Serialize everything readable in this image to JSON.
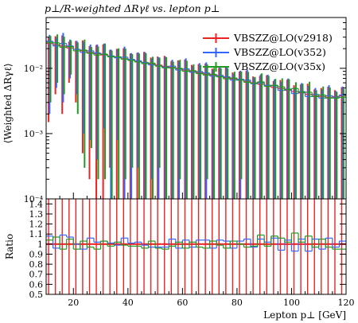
{
  "chart_data": [
    {
      "panel": "main",
      "type": "line",
      "title": "p⊥/R-weighted ΔRγℓ vs. lepton p⊥",
      "ylabel": "⟨Weighted  ΔRγℓ⟩",
      "yscale": "log",
      "ylim": [
        0.0001,
        0.06
      ],
      "xlim": [
        10,
        120
      ],
      "ytick_labels": [
        "10⁻²",
        "10⁻³",
        "10⁻⁴"
      ],
      "legend_position": "top-right",
      "colors": {
        "v2918": "#ee2222",
        "v352": "#3366ff",
        "v35x": "#229922",
        "ratio_line": "#ee2222"
      },
      "x_bin_edges": [
        10,
        12.5,
        15,
        17.5,
        20,
        22.5,
        25,
        27.5,
        30,
        32.5,
        35,
        37.5,
        40,
        42.5,
        45,
        47.5,
        50,
        52.5,
        55,
        57.5,
        60,
        62.5,
        65,
        67.5,
        70,
        72.5,
        75,
        77.5,
        80,
        82.5,
        85,
        87.5,
        90,
        92.5,
        95,
        97.5,
        100,
        102.5,
        105,
        107.5,
        110,
        112.5,
        115,
        117.5,
        120
      ],
      "series": [
        {
          "name": "VBSZZ@LO(v2918)",
          "values": [
            0.024,
            0.023,
            0.022,
            0.0205,
            0.0195,
            0.0185,
            0.0175,
            0.0168,
            0.016,
            0.0153,
            0.0147,
            0.014,
            0.0135,
            0.0128,
            0.0123,
            0.0117,
            0.0112,
            0.0107,
            0.0103,
            0.0098,
            0.0094,
            0.009,
            0.0086,
            0.0082,
            0.0079,
            0.0075,
            0.0072,
            0.0069,
            0.0066,
            0.0063,
            0.006,
            0.0057,
            0.0054,
            0.0051,
            0.0049,
            0.0046,
            0.0044,
            0.0042,
            0.004,
            0.0038,
            0.0037,
            0.0036,
            0.0037,
            0.0038
          ]
        },
        {
          "name": "VBSZZ@LO(v352)",
          "values": [
            0.026,
            0.022,
            0.024,
            0.022,
            0.0195,
            0.0175,
            0.0185,
            0.0172,
            0.0165,
            0.0155,
            0.0145,
            0.0148,
            0.0137,
            0.013,
            0.0122,
            0.0113,
            0.0109,
            0.0104,
            0.0108,
            0.0094,
            0.0098,
            0.0087,
            0.0089,
            0.0085,
            0.0076,
            0.0078,
            0.0074,
            0.0066,
            0.0068,
            0.0066,
            0.0058,
            0.006,
            0.0055,
            0.0054,
            0.0046,
            0.0048,
            0.0041,
            0.0044,
            0.0037,
            0.004,
            0.0035,
            0.0038,
            0.0036,
            0.0039
          ]
        },
        {
          "name": "VBSZZ@LO(v35x)",
          "values": [
            0.025,
            0.0245,
            0.021,
            0.0215,
            0.0185,
            0.019,
            0.017,
            0.016,
            0.0165,
            0.015,
            0.015,
            0.0138,
            0.0132,
            0.0125,
            0.0118,
            0.012,
            0.0108,
            0.0102,
            0.0101,
            0.01,
            0.009,
            0.0092,
            0.0083,
            0.0079,
            0.0081,
            0.0074,
            0.0069,
            0.0071,
            0.0066,
            0.0061,
            0.0059,
            0.0062,
            0.0053,
            0.0055,
            0.0052,
            0.0047,
            0.0049,
            0.0043,
            0.0043,
            0.0037,
            0.0039,
            0.0035,
            0.0035,
            0.0036
          ]
        }
      ],
      "error_bar_low_edge": {
        "v2918": [
          0.0015,
          0.004,
          0.002,
          0.006,
          0.003,
          0.0005,
          0.0002,
          0.0001,
          0.0001,
          0.0003,
          0.0001,
          0.0001,
          0.0001,
          0.0001,
          0.0001,
          0.0001,
          0.0001,
          0.0001,
          0.0001,
          0.0001,
          0.0001,
          0.0001,
          0.0001,
          0.0001,
          0.0001,
          0.0001,
          0.0001,
          0.0001,
          0.0001,
          0.0001,
          0.0001,
          0.0001,
          0.0001,
          0.0001,
          0.0001,
          0.0001,
          0.0001,
          0.0001,
          0.0001,
          0.0001,
          0.0001,
          0.0001,
          0.0001,
          0.0001
        ],
        "v352": [
          0.002,
          0.005,
          0.003,
          0.007,
          0.004,
          0.001,
          0.0008,
          0.0004,
          0.0012,
          0.0001,
          0.0008,
          0.0001,
          0.0001,
          0.0003,
          0.0001,
          0.0002,
          0.0001,
          0.0001,
          0.0001,
          0.0001,
          0.0001,
          0.0001,
          0.0001,
          0.0001,
          0.0001,
          0.0001,
          0.0001,
          0.0001,
          0.0001,
          0.0001,
          0.0001,
          0.0001,
          0.0001,
          0.0001,
          0.0001,
          0.0001,
          0.0001,
          0.0001,
          0.0001,
          0.0001,
          0.0001,
          0.0001,
          0.0001,
          0.0001
        ],
        "v35x": [
          0.003,
          0.006,
          0.004,
          0.008,
          0.002,
          0.0003,
          0.0006,
          0.0002,
          0.0002,
          0.0001,
          0.0001,
          0.0002,
          0.0003,
          0.0001,
          0.0001,
          0.0001,
          0.0003,
          0.0001,
          0.0001,
          0.0002,
          0.0001,
          0.0001,
          0.0001,
          0.0002,
          0.0001,
          0.0001,
          0.0001,
          0.0001,
          0.0002,
          0.0001,
          0.0001,
          0.0001,
          0.0001,
          0.0001,
          0.0001,
          0.0001,
          0.0001,
          0.0001,
          0.0001,
          0.0001,
          0.0001,
          0.0001,
          0.0001,
          0.0001
        ]
      }
    },
    {
      "panel": "ratio",
      "type": "line",
      "ylabel": "Ratio",
      "xlabel": "Lepton p⊥ [GeV]",
      "ylim": [
        0.5,
        1.45
      ],
      "xlim": [
        10,
        120
      ],
      "yticks": [
        0.5,
        0.6,
        0.7,
        0.8,
        0.9,
        1,
        1.1,
        1.2,
        1.3,
        1.4
      ],
      "ytick_labels": [
        "0.5",
        "0.6",
        "0.7",
        "0.8",
        "0.9",
        "1",
        "1.1",
        "1.2",
        "1.3",
        "1.4"
      ],
      "xticks": [
        20,
        40,
        60,
        80,
        100,
        120
      ],
      "xtick_labels": [
        "20",
        "40",
        "60",
        "80",
        "100",
        "120"
      ],
      "series": [
        {
          "name": "VBSZZ@LO(v2918)",
          "values": [
            1,
            1,
            1,
            1,
            1,
            1,
            1,
            1,
            1,
            1,
            1,
            1,
            1,
            1,
            1,
            1,
            1,
            1,
            1,
            1,
            1,
            1,
            1,
            1,
            1,
            1,
            1,
            1,
            1,
            1,
            1,
            1,
            1,
            1,
            1,
            1,
            1,
            1,
            1,
            1,
            1,
            1,
            1,
            1
          ]
        },
        {
          "name": "VBSZZ@LO(v352)",
          "values": [
            1.08,
            0.96,
            1.09,
            1.07,
            1.0,
            0.95,
            1.06,
            1.02,
            1.03,
            1.01,
            0.99,
            1.06,
            1.01,
            1.02,
            0.99,
            0.97,
            0.97,
            0.97,
            1.05,
            0.96,
            1.04,
            0.97,
            1.04,
            1.04,
            0.96,
            1.04,
            1.03,
            0.96,
            1.03,
            1.05,
            0.97,
            1.05,
            1.02,
            1.06,
            0.94,
            1.04,
            0.93,
            1.05,
            0.93,
            1.05,
            0.95,
            1.06,
            0.97,
            1.03
          ]
        },
        {
          "name": "VBSZZ@LO(v35x)",
          "values": [
            1.04,
            1.07,
            0.95,
            1.05,
            0.95,
            1.03,
            0.97,
            0.95,
            1.03,
            0.98,
            1.02,
            0.99,
            0.98,
            0.98,
            0.96,
            1.03,
            0.96,
            0.95,
            0.98,
            1.02,
            0.96,
            1.02,
            0.97,
            0.96,
            1.03,
            0.99,
            0.96,
            1.03,
            1.0,
            0.97,
            0.98,
            1.09,
            0.98,
            1.08,
            1.06,
            1.02,
            1.11,
            1.02,
            1.08,
            0.97,
            1.05,
            0.97,
            0.95,
            0.95
          ]
        }
      ]
    }
  ]
}
